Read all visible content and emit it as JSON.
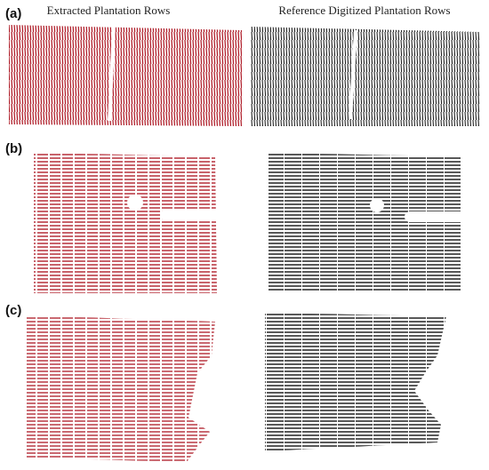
{
  "header": {
    "left": "Extracted Plantation Rows",
    "right": "Reference Digitized Plantation Rows"
  },
  "panels": [
    {
      "label": "(a)"
    },
    {
      "label": "(b)"
    },
    {
      "label": "(c)"
    }
  ]
}
